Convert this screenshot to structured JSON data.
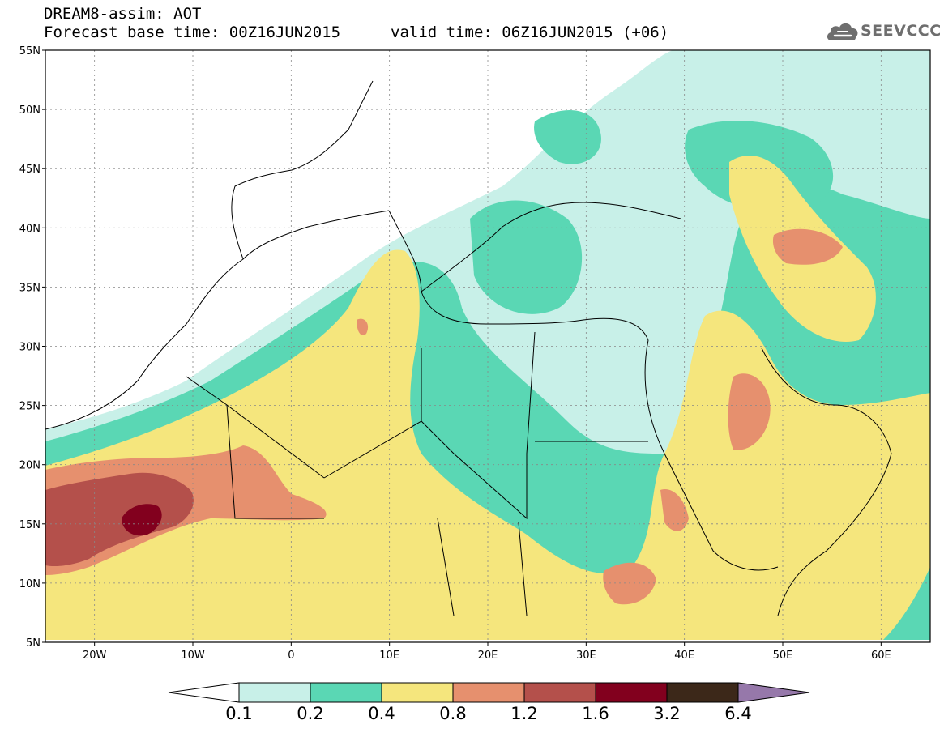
{
  "header": {
    "line1": "DREAM8-assim: AOT",
    "line2": "Forecast base time: 00Z16JUN2015",
    "valid": "valid time: 06Z16JUN2015 (+06)"
  },
  "logo": {
    "text": "SEEVCCC",
    "icon": "cloud-icon",
    "color": "#6e6e6e"
  },
  "map": {
    "lon_range": [
      -25,
      65
    ],
    "lat_range": [
      5,
      55
    ],
    "lat_ticks": [
      "55N",
      "50N",
      "45N",
      "40N",
      "35N",
      "30N",
      "25N",
      "20N",
      "15N",
      "10N",
      "5N"
    ],
    "lon_ticks": [
      "20W",
      "10W",
      "0",
      "10E",
      "20E",
      "30E",
      "40E",
      "50E",
      "60E"
    ],
    "grid": "dotted"
  },
  "colorbar": {
    "labels": [
      "0.1",
      "0.2",
      "0.4",
      "0.8",
      "1.2",
      "1.6",
      "3.2",
      "6.4"
    ],
    "colors": [
      "#ffffff",
      "#c8f0e8",
      "#5ad7b4",
      "#f5e67d",
      "#e6906e",
      "#b4504b",
      "#82001e",
      "#3c2819",
      "#9678aa"
    ]
  }
}
